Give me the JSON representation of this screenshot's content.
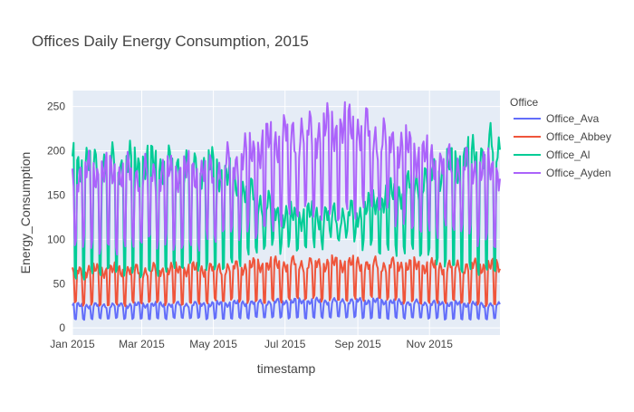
{
  "chart_data": {
    "type": "line",
    "title": "Offices Daily Energy Consumption, 2015",
    "xlabel": "timestamp",
    "ylabel": "Energy_Consumption",
    "x_range": [
      "2015-01-01",
      "2015-12-31"
    ],
    "ylim": [
      -8,
      268
    ],
    "x_ticks": [
      {
        "date": "2015-01-01",
        "label": "Jan 2015"
      },
      {
        "date": "2015-03-01",
        "label": "Mar 2015"
      },
      {
        "date": "2015-05-01",
        "label": "May 2015"
      },
      {
        "date": "2015-07-01",
        "label": "Jul 2015"
      },
      {
        "date": "2015-09-01",
        "label": "Sep 2015"
      },
      {
        "date": "2015-11-01",
        "label": "Nov 2015"
      }
    ],
    "y_ticks": [
      0,
      50,
      100,
      150,
      200,
      250
    ],
    "grid": true,
    "legend_title": "Office",
    "legend_position": "right",
    "plot_bg": "#E5ECF6",
    "series": [
      {
        "name": "Office_Ava",
        "color": "#636EFA",
        "profile": {
          "x": [
            "2015-01-01",
            "2015-03-01",
            "2015-05-01",
            "2015-07-01",
            "2015-09-01",
            "2015-11-01",
            "2015-12-31"
          ],
          "low": [
            10,
            11,
            11,
            12,
            12,
            11,
            10
          ],
          "high": [
            27,
            28,
            29,
            32,
            33,
            30,
            28
          ]
        }
      },
      {
        "name": "Office_Abbey",
        "color": "#EF553B",
        "profile": {
          "x": [
            "2015-01-01",
            "2015-03-01",
            "2015-05-01",
            "2015-07-01",
            "2015-09-01",
            "2015-11-01",
            "2015-12-31"
          ],
          "low": [
            27,
            28,
            30,
            32,
            34,
            30,
            27
          ],
          "high": [
            70,
            70,
            72,
            78,
            78,
            75,
            75
          ]
        }
      },
      {
        "name": "Office_Al",
        "color": "#00CC96",
        "profile": {
          "x": [
            "2015-01-01",
            "2015-03-01",
            "2015-05-01",
            "2015-07-01",
            "2015-09-01",
            "2015-11-01",
            "2015-12-31"
          ],
          "low": [
            60,
            65,
            70,
            95,
            100,
            80,
            60
          ],
          "high": [
            200,
            200,
            195,
            135,
            140,
            185,
            225
          ]
        }
      },
      {
        "name": "Office_Ayden",
        "color": "#AB63FA",
        "profile": {
          "x": [
            "2015-01-01",
            "2015-03-01",
            "2015-05-01",
            "2015-07-01",
            "2015-09-01",
            "2015-11-01",
            "2015-12-31"
          ],
          "low": [
            95,
            95,
            100,
            125,
            140,
            115,
            100
          ],
          "high": [
            190,
            188,
            190,
            235,
            245,
            205,
            190
          ]
        }
      }
    ]
  }
}
